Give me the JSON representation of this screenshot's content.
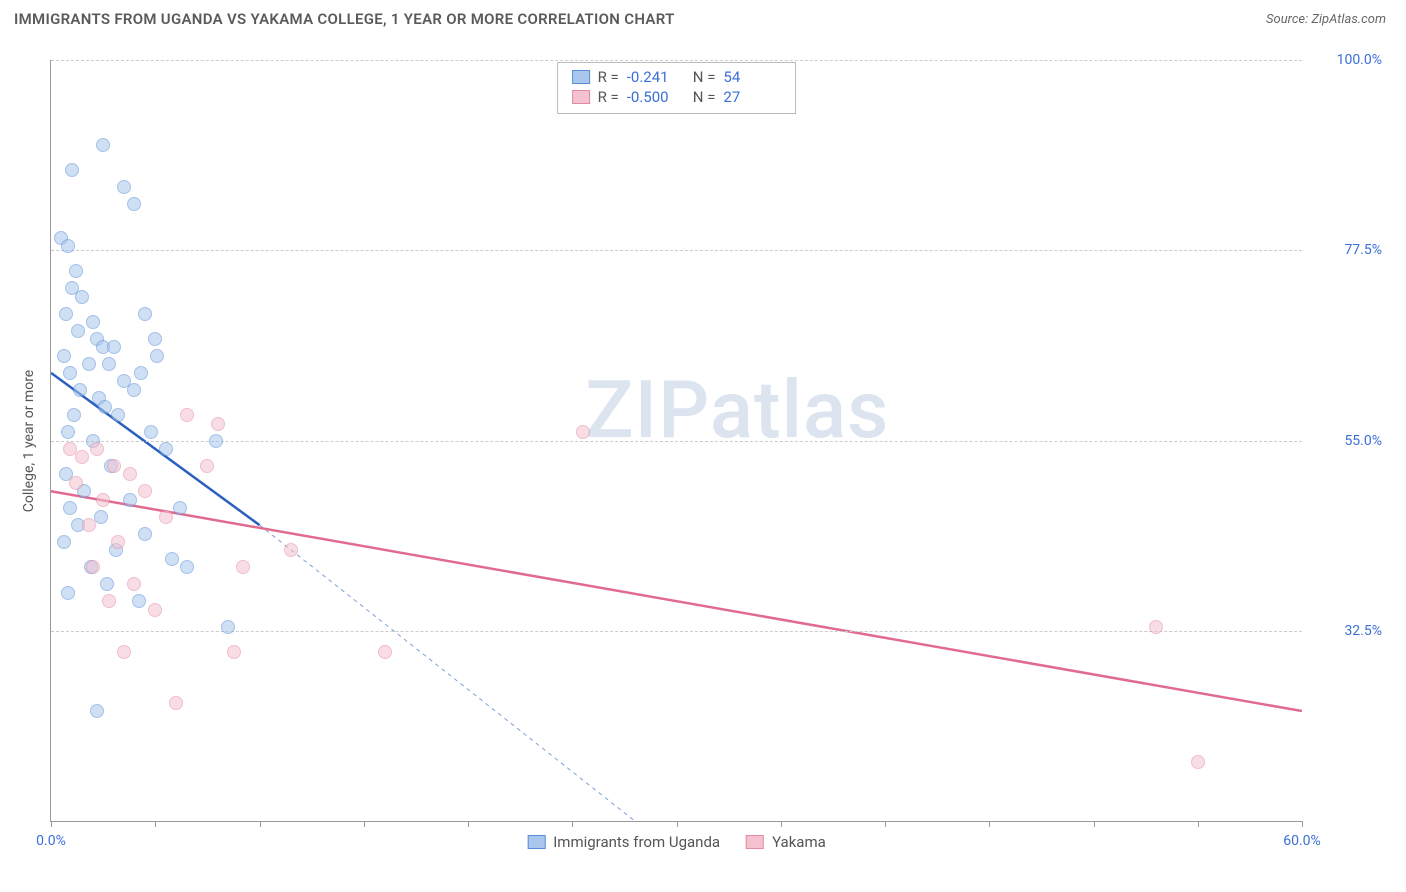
{
  "header": {
    "title": "IMMIGRANTS FROM UGANDA VS YAKAMA COLLEGE, 1 YEAR OR MORE CORRELATION CHART",
    "source_label": "Source:",
    "source_name": "ZipAtlas.com"
  },
  "watermark": "ZIPatlas",
  "chart": {
    "type": "scatter",
    "yaxis_title": "College, 1 year or more",
    "xlim": [
      0,
      60
    ],
    "ylim": [
      10,
      100
    ],
    "xticks": [
      0,
      5,
      10,
      15,
      20,
      25,
      30,
      35,
      40,
      45,
      50,
      55,
      60
    ],
    "xtick_labels": {
      "0": "0.0%",
      "60": "60.0%"
    },
    "yticks": [
      32.5,
      55.0,
      77.5,
      100.0
    ],
    "ytick_labels": [
      "32.5%",
      "55.0%",
      "77.5%",
      "100.0%"
    ],
    "grid_color": "#cccccc",
    "axis_color": "#999999",
    "background_color": "#ffffff",
    "marker_radius": 7,
    "marker_opacity": 0.55,
    "series": [
      {
        "name": "Immigrants from Uganda",
        "color_fill": "#a9c6ec",
        "color_stroke": "#5b8fd6",
        "R": "-0.241",
        "N": "54",
        "trend": {
          "x1": 0,
          "y1": 63,
          "x2": 10,
          "y2": 45,
          "color": "#2b5fc0",
          "width": 2.5,
          "dash_ext": {
            "x2": 28,
            "y2": 10
          }
        },
        "points": [
          [
            0.5,
            79
          ],
          [
            0.8,
            78
          ],
          [
            1.2,
            75
          ],
          [
            1.0,
            73
          ],
          [
            1.5,
            72
          ],
          [
            0.7,
            70
          ],
          [
            2.0,
            69
          ],
          [
            1.3,
            68
          ],
          [
            2.2,
            67
          ],
          [
            2.5,
            66
          ],
          [
            0.6,
            65
          ],
          [
            3.0,
            66
          ],
          [
            1.8,
            64
          ],
          [
            2.8,
            64
          ],
          [
            0.9,
            63
          ],
          [
            3.5,
            62
          ],
          [
            1.4,
            61
          ],
          [
            4.0,
            61
          ],
          [
            2.3,
            60
          ],
          [
            4.3,
            63
          ],
          [
            2.6,
            59
          ],
          [
            1.1,
            58
          ],
          [
            3.2,
            58
          ],
          [
            5.1,
            65
          ],
          [
            0.8,
            56
          ],
          [
            2.0,
            55
          ],
          [
            4.8,
            56
          ],
          [
            2.9,
            52
          ],
          [
            0.7,
            51
          ],
          [
            5.5,
            54
          ],
          [
            1.6,
            49
          ],
          [
            3.8,
            48
          ],
          [
            0.9,
            47
          ],
          [
            2.4,
            46
          ],
          [
            6.2,
            47
          ],
          [
            1.3,
            45
          ],
          [
            4.5,
            44
          ],
          [
            0.6,
            43
          ],
          [
            3.1,
            42
          ],
          [
            5.8,
            41
          ],
          [
            1.9,
            40
          ],
          [
            2.7,
            38
          ],
          [
            0.8,
            37
          ],
          [
            7.9,
            55
          ],
          [
            4.2,
            36
          ],
          [
            2.2,
            23
          ],
          [
            6.5,
            40
          ],
          [
            8.5,
            33
          ],
          [
            1.0,
            87
          ],
          [
            2.5,
            90
          ],
          [
            3.5,
            85
          ],
          [
            4.0,
            83
          ],
          [
            4.5,
            70
          ],
          [
            5.0,
            67
          ]
        ]
      },
      {
        "name": "Yakama",
        "color_fill": "#f4c2cf",
        "color_stroke": "#e489a3",
        "R": "-0.500",
        "N": "27",
        "trend": {
          "x1": 0,
          "y1": 49,
          "x2": 60,
          "y2": 23,
          "color": "#e06b8f",
          "width": 2.5
        },
        "points": [
          [
            0.9,
            54
          ],
          [
            1.5,
            53
          ],
          [
            2.2,
            54
          ],
          [
            3.0,
            52
          ],
          [
            1.2,
            50
          ],
          [
            3.8,
            51
          ],
          [
            2.5,
            48
          ],
          [
            4.5,
            49
          ],
          [
            1.8,
            45
          ],
          [
            5.5,
            46
          ],
          [
            3.2,
            43
          ],
          [
            2.0,
            40
          ],
          [
            6.5,
            58
          ],
          [
            4.0,
            38
          ],
          [
            8.0,
            57
          ],
          [
            2.8,
            36
          ],
          [
            5.0,
            35
          ],
          [
            7.5,
            52
          ],
          [
            3.5,
            30
          ],
          [
            9.2,
            40
          ],
          [
            6.0,
            24
          ],
          [
            11.5,
            42
          ],
          [
            8.8,
            30
          ],
          [
            16.0,
            30
          ],
          [
            25.5,
            56
          ],
          [
            53.0,
            33
          ],
          [
            55.0,
            17
          ]
        ]
      }
    ],
    "legend_top": {
      "r_label": "R =",
      "n_label": "N ="
    }
  }
}
